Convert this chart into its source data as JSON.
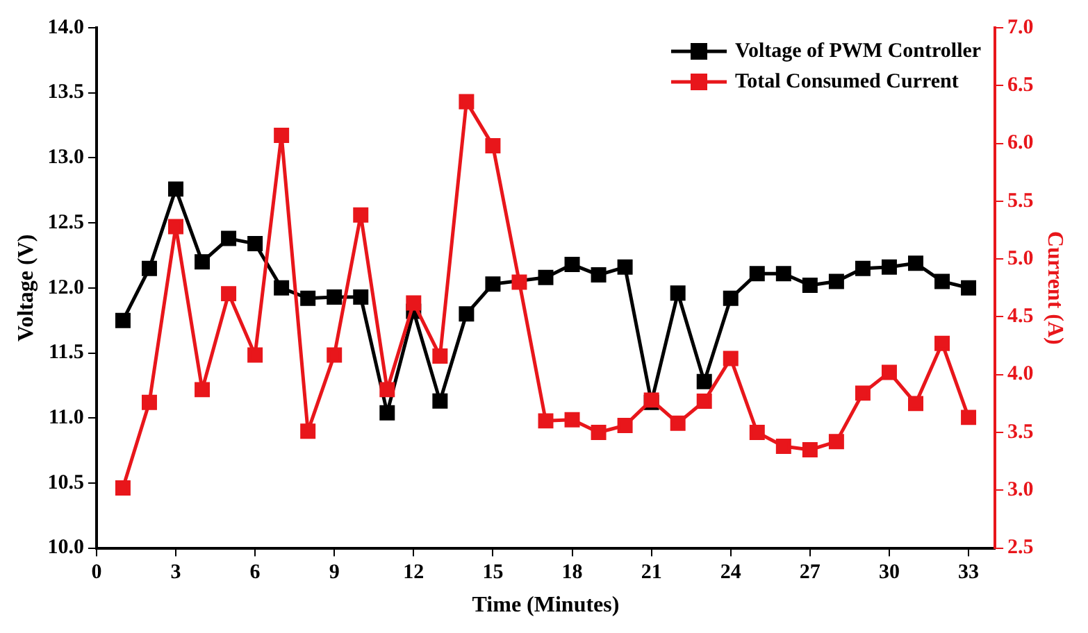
{
  "chart_data": {
    "type": "line",
    "xlabel": "Time (Minutes)",
    "ylabel": "Voltage (V)",
    "y2label": "Current (A)",
    "x": [
      1,
      2,
      3,
      4,
      5,
      6,
      7,
      8,
      9,
      10,
      11,
      12,
      13,
      14,
      15,
      16,
      17,
      18,
      19,
      20,
      21,
      22,
      23,
      24,
      25,
      26,
      27,
      28,
      29,
      30,
      31,
      32,
      33
    ],
    "series": [
      {
        "name": "Voltage of PWM Controller",
        "color": "#000000",
        "values": [
          11.75,
          12.15,
          12.76,
          12.2,
          12.38,
          12.34,
          12.0,
          11.92,
          11.93,
          11.93,
          11.04,
          11.82,
          11.13,
          11.8,
          12.03,
          null,
          12.08,
          12.18,
          12.1,
          12.16,
          11.12,
          11.96,
          11.28,
          11.92,
          12.11,
          12.11,
          12.02,
          12.05,
          12.15,
          12.16,
          12.19,
          12.05,
          12.0
        ]
      },
      {
        "name": "Total Consumed Current",
        "color": "#e8161b",
        "axis": "y2",
        "values": [
          3.02,
          3.76,
          5.28,
          3.87,
          4.7,
          4.17,
          6.07,
          3.51,
          4.17,
          5.38,
          3.87,
          4.62,
          4.16,
          6.36,
          5.98,
          4.8,
          3.6,
          3.61,
          3.5,
          3.56,
          3.78,
          3.58,
          3.77,
          4.14,
          3.5,
          3.38,
          3.35,
          3.42,
          3.84,
          4.02,
          3.75,
          4.27,
          3.63
        ]
      }
    ],
    "xlim": [
      0,
      34
    ],
    "xticks": [
      0,
      3,
      6,
      9,
      12,
      15,
      18,
      21,
      24,
      27,
      30,
      33
    ],
    "ylim": [
      10,
      14
    ],
    "yticks": [
      {
        "value": 10,
        "label": "10.0"
      },
      10.5,
      {
        "value": 11,
        "label": "11.0"
      },
      11.5,
      {
        "value": 12,
        "label": "12.0"
      },
      12.5,
      {
        "value": 13,
        "label": "13.0"
      },
      13.5,
      {
        "value": 14,
        "label": "14.0"
      }
    ],
    "y2lim": [
      2.5,
      7
    ],
    "y2ticks": [
      2.5,
      {
        "value": 3,
        "label": "3.0"
      },
      3.5,
      {
        "value": 4,
        "label": "4.0"
      },
      4.5,
      {
        "value": 5,
        "label": "5.0"
      },
      5.5,
      {
        "value": 6,
        "label": "6.0"
      },
      6.5,
      {
        "value": 7,
        "label": "7.0"
      }
    ],
    "grid": false,
    "legend": "top right",
    "marker": "square",
    "line_style": "solid"
  }
}
